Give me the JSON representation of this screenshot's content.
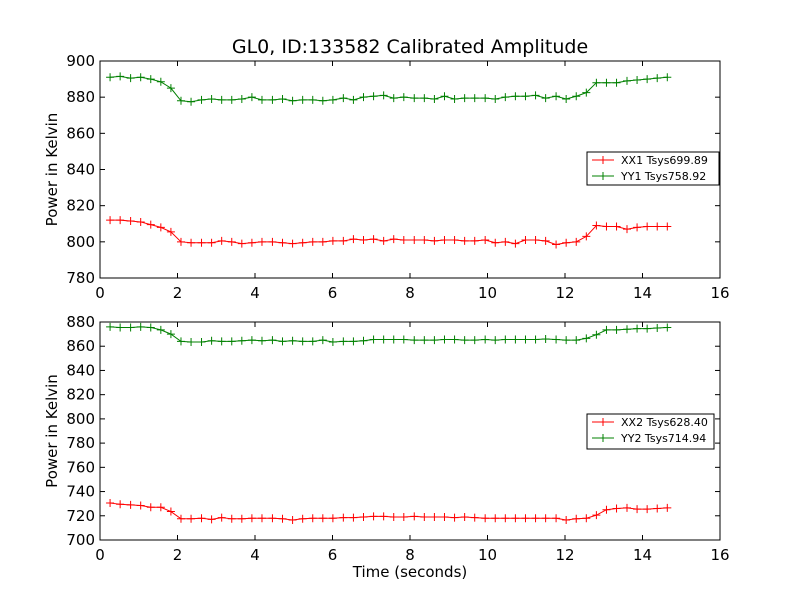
{
  "chart_data": [
    {
      "type": "line",
      "title": "GL0, ID:133582 Calibrated Amplitude",
      "xlabel": "",
      "ylabel": "Power in Kelvin",
      "xlim": [
        0,
        16
      ],
      "ylim": [
        780,
        900
      ],
      "xticks": [
        "0",
        "2",
        "4",
        "6",
        "8",
        "10",
        "12",
        "14",
        "16"
      ],
      "yticks": [
        "780",
        "800",
        "820",
        "840",
        "860",
        "880",
        "900"
      ],
      "legend_position": "center-right",
      "grid": false,
      "x": [
        0.26,
        0.52,
        0.79,
        1.05,
        1.31,
        1.57,
        1.83,
        2.09,
        2.35,
        2.62,
        2.88,
        3.14,
        3.4,
        3.66,
        3.92,
        4.18,
        4.45,
        4.71,
        4.97,
        5.23,
        5.49,
        5.75,
        6.01,
        6.28,
        6.54,
        6.8,
        7.06,
        7.32,
        7.58,
        7.84,
        8.11,
        8.37,
        8.63,
        8.89,
        9.15,
        9.41,
        9.67,
        9.94,
        10.2,
        10.46,
        10.72,
        10.98,
        11.24,
        11.5,
        11.77,
        12.03,
        12.29,
        12.55,
        12.81,
        13.07,
        13.33,
        13.6,
        13.86,
        14.12,
        14.38,
        14.64
      ],
      "series": [
        {
          "name": "XX1 Tsys699.89",
          "color": "#ff0000",
          "values": [
            812,
            812,
            811.5,
            811,
            809.5,
            808,
            805.5,
            800,
            799.5,
            799.5,
            799.5,
            800.5,
            800,
            799,
            799.5,
            800,
            800,
            799.5,
            799,
            799.5,
            800,
            800,
            800.5,
            800.5,
            801.5,
            801,
            801.5,
            800.5,
            801.5,
            801,
            801,
            801,
            800.5,
            801,
            801,
            800.5,
            800.5,
            801,
            799.5,
            800,
            799,
            801,
            801,
            800.5,
            798.5,
            799.5,
            800,
            803,
            809,
            808.5,
            808.5,
            807,
            808,
            808.5,
            808.5,
            808.5
          ]
        },
        {
          "name": "YY1 Tsys758.92",
          "color": "#008000",
          "values": [
            891,
            891.5,
            890.5,
            891,
            890,
            888.5,
            885,
            878,
            877.5,
            878.5,
            879,
            878.5,
            878.5,
            879,
            880,
            878.5,
            878.5,
            879,
            878,
            878.5,
            878.5,
            878,
            878.5,
            879.5,
            878.5,
            880,
            880.5,
            881,
            879.5,
            880,
            879.5,
            879.5,
            879,
            880.5,
            879,
            879.5,
            879.5,
            879.5,
            879,
            880,
            880.5,
            880.5,
            881,
            879.5,
            880.5,
            879,
            880.5,
            882.5,
            888,
            888,
            888,
            889,
            889.5,
            890,
            890.5,
            891
          ]
        }
      ]
    },
    {
      "type": "line",
      "title": "",
      "xlabel": "Time (seconds)",
      "ylabel": "Power in Kelvin",
      "xlim": [
        0,
        16
      ],
      "ylim": [
        700,
        880
      ],
      "xticks": [
        "0",
        "2",
        "4",
        "6",
        "8",
        "10",
        "12",
        "14",
        "16"
      ],
      "yticks": [
        "700",
        "720",
        "740",
        "760",
        "780",
        "800",
        "820",
        "840",
        "860",
        "880"
      ],
      "legend_position": "center-right",
      "grid": false,
      "x": [
        0.26,
        0.52,
        0.79,
        1.05,
        1.31,
        1.57,
        1.83,
        2.09,
        2.35,
        2.62,
        2.88,
        3.14,
        3.4,
        3.66,
        3.92,
        4.18,
        4.45,
        4.71,
        4.97,
        5.23,
        5.49,
        5.75,
        6.01,
        6.28,
        6.54,
        6.8,
        7.06,
        7.32,
        7.58,
        7.84,
        8.11,
        8.37,
        8.63,
        8.89,
        9.15,
        9.41,
        9.67,
        9.94,
        10.2,
        10.46,
        10.72,
        10.98,
        11.24,
        11.5,
        11.77,
        12.03,
        12.29,
        12.55,
        12.81,
        13.07,
        13.33,
        13.6,
        13.86,
        14.12,
        14.38,
        14.64
      ],
      "series": [
        {
          "name": "XX2 Tsys628.40",
          "color": "#ff0000",
          "values": [
            730.5,
            729.5,
            729,
            728.5,
            727,
            727,
            723.5,
            717.5,
            717.5,
            718,
            717,
            718.5,
            717.5,
            717.5,
            718,
            718,
            718,
            717.5,
            716.5,
            717.5,
            718,
            718,
            718,
            718.5,
            718.5,
            719,
            719.5,
            719.5,
            719,
            719,
            719.5,
            719,
            719,
            719,
            718.5,
            719,
            718.5,
            718,
            718,
            718,
            718,
            718,
            718,
            718,
            718,
            716.5,
            717.5,
            718,
            720.5,
            725,
            726,
            726.5,
            725.5,
            725.5,
            726,
            726.5
          ]
        },
        {
          "name": "YY2 Tsys714.94",
          "color": "#008000",
          "values": [
            876,
            875.5,
            875.5,
            876,
            875.5,
            873.5,
            870,
            864,
            863.5,
            863.5,
            864.5,
            864,
            864,
            864.5,
            865,
            864.5,
            865,
            864,
            864.5,
            864,
            864,
            865,
            863.5,
            864,
            864,
            864.5,
            865.5,
            865.5,
            865.5,
            865.5,
            865,
            865,
            865,
            865.5,
            865.5,
            865,
            865,
            865.5,
            865,
            865.5,
            865.5,
            865.5,
            865.5,
            866,
            865.5,
            865,
            865,
            866.5,
            869.5,
            873.5,
            873.5,
            874,
            874.5,
            874.5,
            875,
            875.5
          ]
        }
      ]
    }
  ]
}
